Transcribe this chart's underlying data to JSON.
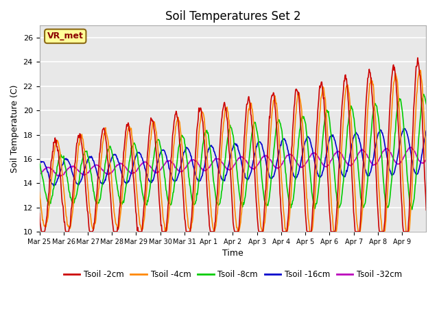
{
  "title": "Soil Temperatures Set 2",
  "xlabel": "Time",
  "ylabel": "Soil Temperature (C)",
  "ylim": [
    10,
    27
  ],
  "yticks": [
    10,
    12,
    14,
    16,
    18,
    20,
    22,
    24,
    26
  ],
  "background_color": "#e8e8e8",
  "series": {
    "Tsoil -2cm": {
      "color": "#cc0000",
      "lw": 1.2
    },
    "Tsoil -4cm": {
      "color": "#ff8800",
      "lw": 1.2
    },
    "Tsoil -8cm": {
      "color": "#00cc00",
      "lw": 1.2
    },
    "Tsoil -16cm": {
      "color": "#0000cc",
      "lw": 1.2
    },
    "Tsoil -32cm": {
      "color": "#bb00bb",
      "lw": 1.2
    }
  },
  "watermark": "VR_met",
  "xtick_labels": [
    "Mar 25",
    "Mar 26",
    "Mar 27",
    "Mar 28",
    "Mar 29",
    "Mar 30",
    "Mar 31",
    "Apr 1",
    "Apr 2",
    "Apr 3",
    "Apr 4",
    "Apr 5",
    "Apr 6",
    "Apr 7",
    "Apr 8",
    "Apr 9"
  ]
}
